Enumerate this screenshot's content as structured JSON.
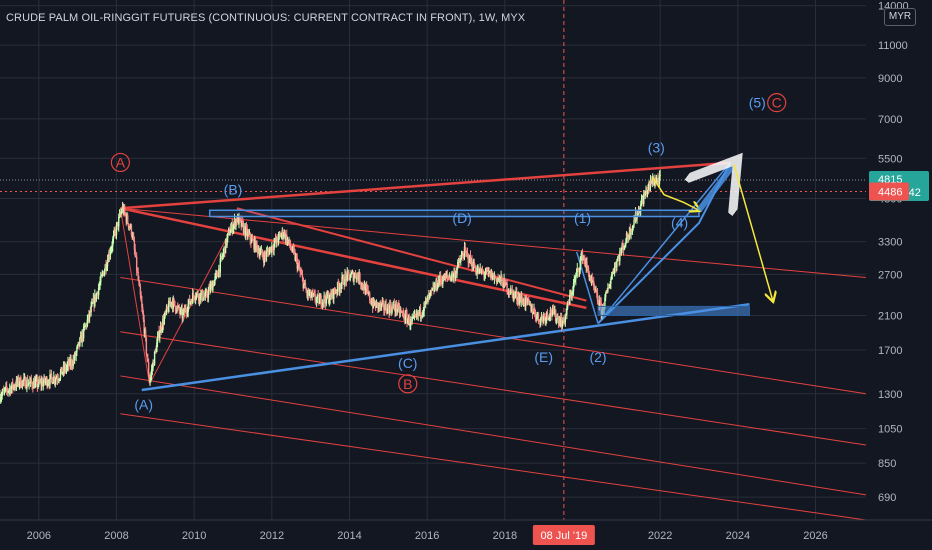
{
  "header": {
    "title": "CRUDE PALM OIL-RINGGIT FUTURES (CONTINUOUS: CURRENT CONTRACT IN FRONT), 1W, MYX",
    "currency": "MYR"
  },
  "colors": {
    "background": "#131722",
    "grid": "#2a2e39",
    "candle_up": "#c9ffb0",
    "candle_down": "#ff8a8a",
    "red_line": "#e3423f",
    "blue_line": "#4a90e2",
    "blue_label": "#5b9cf0",
    "yellow": "#f6e73b",
    "green_badge": "#26a69a",
    "red_badge": "#ef5350"
  },
  "chart_data": {
    "type": "candlestick",
    "symbol": "CRUDE PALM OIL-RINGGIT FUTURES",
    "interval": "1W",
    "log_scale": true,
    "x_axis": {
      "ticks": [
        "2006",
        "2008",
        "2010",
        "2012",
        "2014",
        "2016",
        "2018",
        "2022",
        "2024",
        "2026"
      ],
      "cursor_label": "08 Jul '19",
      "range": [
        2005,
        2027.3
      ]
    },
    "y_axis": {
      "ticks": [
        14000,
        11000,
        9000,
        7000,
        5500,
        4300,
        3300,
        2700,
        2100,
        1700,
        1300,
        1050,
        850,
        690
      ],
      "range": [
        600,
        14500
      ],
      "price_badges": [
        {
          "value": "4815",
          "sub": "07:00:42",
          "color": "#26a69a"
        },
        {
          "value": "4486",
          "color": "#ef5350"
        }
      ]
    },
    "price_path": [
      [
        2005.0,
        1290
      ],
      [
        2005.5,
        1400
      ],
      [
        2006.0,
        1380
      ],
      [
        2006.5,
        1450
      ],
      [
        2006.9,
        1600
      ],
      [
        2007.3,
        2100
      ],
      [
        2007.6,
        2600
      ],
      [
        2007.9,
        3300
      ],
      [
        2008.15,
        4050
      ],
      [
        2008.4,
        3500
      ],
      [
        2008.7,
        2000
      ],
      [
        2008.85,
        1400
      ],
      [
        2009.1,
        1900
      ],
      [
        2009.4,
        2300
      ],
      [
        2009.7,
        2100
      ],
      [
        2010.0,
        2400
      ],
      [
        2010.3,
        2350
      ],
      [
        2010.6,
        2700
      ],
      [
        2010.9,
        3500
      ],
      [
        2011.1,
        3800
      ],
      [
        2011.5,
        3300
      ],
      [
        2011.8,
        3000
      ],
      [
        2012.0,
        3200
      ],
      [
        2012.3,
        3500
      ],
      [
        2012.6,
        3000
      ],
      [
        2012.9,
        2400
      ],
      [
        2013.2,
        2300
      ],
      [
        2013.5,
        2350
      ],
      [
        2013.9,
        2650
      ],
      [
        2014.2,
        2700
      ],
      [
        2014.6,
        2250
      ],
      [
        2014.9,
        2200
      ],
      [
        2015.2,
        2200
      ],
      [
        2015.6,
        2000
      ],
      [
        2015.9,
        2200
      ],
      [
        2016.3,
        2600
      ],
      [
        2016.7,
        2700
      ],
      [
        2016.95,
        3100
      ],
      [
        2017.3,
        2750
      ],
      [
        2017.6,
        2700
      ],
      [
        2017.9,
        2600
      ],
      [
        2018.2,
        2400
      ],
      [
        2018.6,
        2250
      ],
      [
        2018.9,
        2050
      ],
      [
        2019.2,
        2150
      ],
      [
        2019.5,
        2000
      ],
      [
        2019.8,
        2600
      ],
      [
        2020.0,
        3050
      ],
      [
        2020.3,
        2450
      ],
      [
        2020.5,
        2150
      ],
      [
        2020.8,
        2800
      ],
      [
        2021.1,
        3300
      ],
      [
        2021.4,
        3900
      ],
      [
        2021.6,
        4400
      ],
      [
        2021.8,
        4800
      ],
      [
        2022.0,
        4815
      ]
    ],
    "waves": [
      {
        "label": "A",
        "x": 2008.1,
        "y": 5200,
        "color": "#e3423f",
        "circled": true
      },
      {
        "label": "(B)",
        "x": 2011.0,
        "y": 4400,
        "color": "#5b9cf0"
      },
      {
        "label": "(A)",
        "x": 2008.7,
        "y": 1180,
        "color": "#5b9cf0"
      },
      {
        "label": "(D)",
        "x": 2016.9,
        "y": 3700,
        "color": "#5b9cf0"
      },
      {
        "label": "(C)",
        "x": 2015.5,
        "y": 1520,
        "color": "#5b9cf0"
      },
      {
        "label": "B",
        "x": 2015.5,
        "y": 1340,
        "color": "#e3423f",
        "circled": true
      },
      {
        "label": "(E)",
        "x": 2019.0,
        "y": 1580,
        "color": "#5b9cf0"
      },
      {
        "label": "(1)",
        "x": 2020.0,
        "y": 3700,
        "color": "#5b9cf0"
      },
      {
        "label": "(2)",
        "x": 2020.4,
        "y": 1580,
        "color": "#5b9cf0"
      },
      {
        "label": "(3)",
        "x": 2021.9,
        "y": 5700,
        "color": "#5b9cf0"
      },
      {
        "label": "(4)",
        "x": 2022.5,
        "y": 3600,
        "color": "#5b9cf0"
      },
      {
        "label": "(5)",
        "x": 2024.5,
        "y": 7500,
        "color": "#5b9cf0"
      },
      {
        "label": "C",
        "x": 2025.0,
        "y": 7500,
        "color": "#e3423f",
        "circled": true
      }
    ],
    "lines": [
      {
        "color": "#e3423f",
        "width": 2.5,
        "pts": [
          [
            2008.1,
            4050
          ],
          [
            2023.8,
            5350
          ]
        ]
      },
      {
        "color": "#e3423f",
        "width": 2.5,
        "pts": [
          [
            2008.1,
            4050
          ],
          [
            2020.1,
            2200
          ]
        ]
      },
      {
        "color": "#e3423f",
        "width": 1,
        "pts": [
          [
            2008.1,
            4050
          ],
          [
            2027.3,
            2650
          ]
        ]
      },
      {
        "color": "#e3423f",
        "width": 1,
        "pts": [
          [
            2008.1,
            2650
          ],
          [
            2027.3,
            1300
          ]
        ]
      },
      {
        "color": "#e3423f",
        "width": 1,
        "pts": [
          [
            2008.1,
            1900
          ],
          [
            2027.3,
            950
          ]
        ]
      },
      {
        "color": "#e3423f",
        "width": 1,
        "pts": [
          [
            2008.1,
            1450
          ],
          [
            2027.3,
            700
          ]
        ]
      },
      {
        "color": "#e3423f",
        "width": 1,
        "pts": [
          [
            2008.1,
            1150
          ],
          [
            2027.3,
            600
          ]
        ]
      },
      {
        "color": "#e3423f",
        "width": 1,
        "pts": [
          [
            2008.1,
            4050
          ],
          [
            2008.85,
            1380
          ],
          [
            2011.1,
            3800
          ]
        ]
      },
      {
        "color": "#e3423f",
        "width": 2,
        "pts": [
          [
            2011.1,
            4050
          ],
          [
            2020.1,
            2300
          ]
        ]
      },
      {
        "color": "#4a90e2",
        "width": 2.5,
        "pts": [
          [
            2008.65,
            1330
          ],
          [
            2024.3,
            2250
          ]
        ]
      },
      {
        "color": "#4a90e2",
        "width": 1.5,
        "pts": [
          [
            2020.4,
            2000
          ],
          [
            2023.8,
            5350
          ]
        ]
      },
      {
        "color": "#4a90e2",
        "width": 2,
        "pts": [
          [
            2020.4,
            2000
          ],
          [
            2023.0,
            3700
          ],
          [
            2023.8,
            5350
          ]
        ]
      },
      {
        "color": "#4a90e2",
        "width": 1.5,
        "pts": [
          [
            2019.85,
            3100
          ],
          [
            2020.4,
            2000
          ]
        ]
      }
    ],
    "resistance_box": {
      "x0": 2010.4,
      "x1": 2023.0,
      "y_top": 4000,
      "y_bottom": 3850
    },
    "support_box": {
      "x0": 2020.4,
      "x1": 2024.3,
      "y_top": 2220,
      "y_bottom": 2100
    },
    "yellow_path": [
      [
        2021.8,
        4900
      ],
      [
        2022.1,
        4400
      ],
      [
        2022.6,
        4200
      ],
      [
        2023.0,
        4000
      ]
    ],
    "yellow_projection": [
      [
        2023.0,
        4000
      ],
      [
        2023.9,
        5300
      ],
      [
        2024.9,
        2300
      ]
    ]
  }
}
